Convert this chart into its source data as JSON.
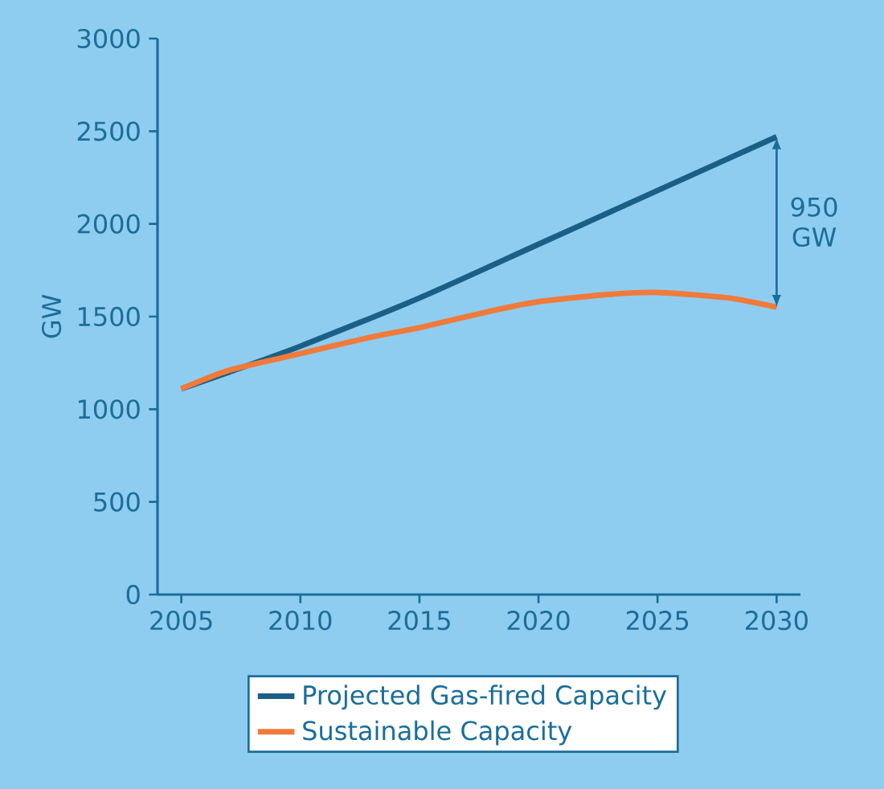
{
  "chart_data": {
    "type": "line",
    "ylabel": "GW",
    "xlim": [
      2004,
      2031
    ],
    "xticks": [
      2005,
      2010,
      2015,
      2020,
      2025,
      2030
    ],
    "ylim": [
      0,
      3000
    ],
    "yticks": [
      0,
      500,
      1000,
      1500,
      2000,
      2500,
      3000
    ],
    "legend": "bottom",
    "grid": false,
    "marker": "none",
    "line_style": "solid",
    "annotations": [
      "950 GW"
    ],
    "series": [
      {
        "name": "Projected Gas-fired Capacity",
        "color": "#1b5f86",
        "x": [
          2005,
          2007,
          2010,
          2015,
          2020,
          2025,
          2030
        ],
        "values": [
          1110,
          1200,
          1340,
          1600,
          1890,
          2180,
          2470
        ]
      },
      {
        "name": "Sustainable Capacity",
        "color": "#f07a3a",
        "x": [
          2005,
          2007,
          2010,
          2013,
          2015,
          2018,
          2020,
          2023,
          2025,
          2028,
          2030
        ],
        "values": [
          1110,
          1210,
          1300,
          1390,
          1440,
          1530,
          1580,
          1620,
          1630,
          1600,
          1550
        ]
      }
    ]
  }
}
